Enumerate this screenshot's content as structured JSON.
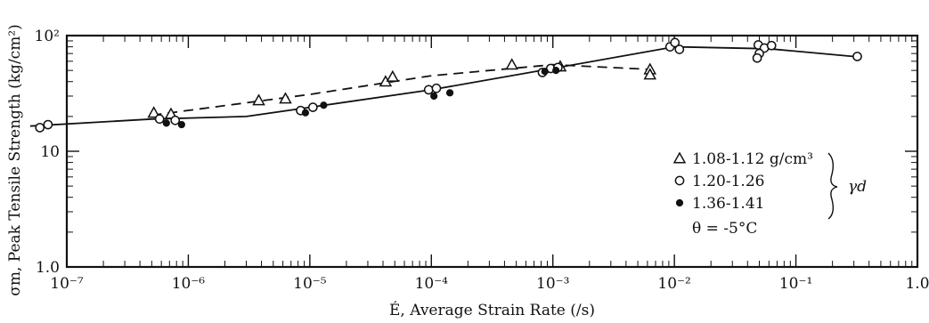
{
  "chart_data": {
    "type": "scatter",
    "title": "",
    "xlabel": "É, Average Strain Rate (/s)",
    "ylabel": "σm, Peak Tensile Strength (kg/cm²)",
    "xscale": "log",
    "yscale": "log",
    "xlim": [
      1e-07,
      1
    ],
    "ylim": [
      1,
      100
    ],
    "x_tick_labels": [
      "10⁻⁷",
      "10⁻⁶",
      "10⁻⁵",
      "10⁻⁴",
      "10⁻³",
      "10⁻²",
      "10⁻¹",
      "1.0"
    ],
    "y_tick_labels": [
      "1.0",
      "10",
      "10²"
    ],
    "grid": false,
    "legend_position": "right",
    "legend": {
      "entries": [
        {
          "symbol": "△",
          "label": "1.08-1.12 g/cm³"
        },
        {
          "symbol": "○",
          "label": "1.20-1.26"
        },
        {
          "symbol": "●",
          "label": "1.36-1.41"
        }
      ],
      "group_label": "γd",
      "condition": "θ = -5°C"
    },
    "series": [
      {
        "marker": "triangle",
        "points": [
          [
            5.2e-07,
            21.5
          ],
          [
            7.2e-07,
            21
          ],
          [
            3.8e-06,
            27.5
          ],
          [
            6.3e-06,
            28.5
          ],
          [
            4.2e-05,
            40
          ],
          [
            4.8e-05,
            44
          ],
          [
            0.00046,
            56
          ],
          [
            0.00115,
            54
          ],
          [
            0.0063,
            51
          ],
          [
            0.0063,
            46
          ]
        ],
        "trend_line": [
          [
            5e-07,
            20.5
          ],
          [
            1e-05,
            31
          ],
          [
            0.0001,
            45
          ],
          [
            0.001,
            56
          ],
          [
            0.0063,
            51
          ]
        ]
      },
      {
        "marker": "open-circle",
        "points": [
          [
            6e-08,
            16
          ],
          [
            7e-08,
            17
          ],
          [
            5.8e-07,
            19
          ],
          [
            7.8e-07,
            18.5
          ],
          [
            8.4e-06,
            22.5
          ],
          [
            1.06e-05,
            24
          ],
          [
            9.5e-05,
            34
          ],
          [
            0.00011,
            35
          ],
          [
            0.00082,
            48
          ],
          [
            0.00096,
            52
          ],
          [
            0.0011,
            53
          ],
          [
            0.0092,
            80
          ],
          [
            0.0101,
            87
          ],
          [
            0.011,
            76
          ],
          [
            0.049,
            83
          ],
          [
            0.055,
            78
          ],
          [
            0.05,
            70
          ],
          [
            0.048,
            64
          ],
          [
            0.063,
            82
          ],
          [
            0.32,
            66
          ]
        ],
        "trend_line": [
          [
            5e-08,
            16.5
          ],
          [
            5e-07,
            19
          ],
          [
            3e-06,
            20
          ],
          [
            1e-05,
            24
          ],
          [
            0.0001,
            34
          ],
          [
            0.001,
            52
          ],
          [
            0.01,
            80
          ],
          [
            0.06,
            77
          ],
          [
            0.3,
            66
          ]
        ]
      },
      {
        "marker": "filled-circle",
        "points": [
          [
            6.6e-07,
            17.5
          ],
          [
            8.8e-07,
            17
          ],
          [
            9.2e-06,
            21.5
          ],
          [
            1.3e-05,
            25
          ],
          [
            0.000105,
            30
          ],
          [
            0.000142,
            32
          ],
          [
            0.00086,
            49
          ],
          [
            0.00106,
            50
          ]
        ]
      }
    ]
  }
}
